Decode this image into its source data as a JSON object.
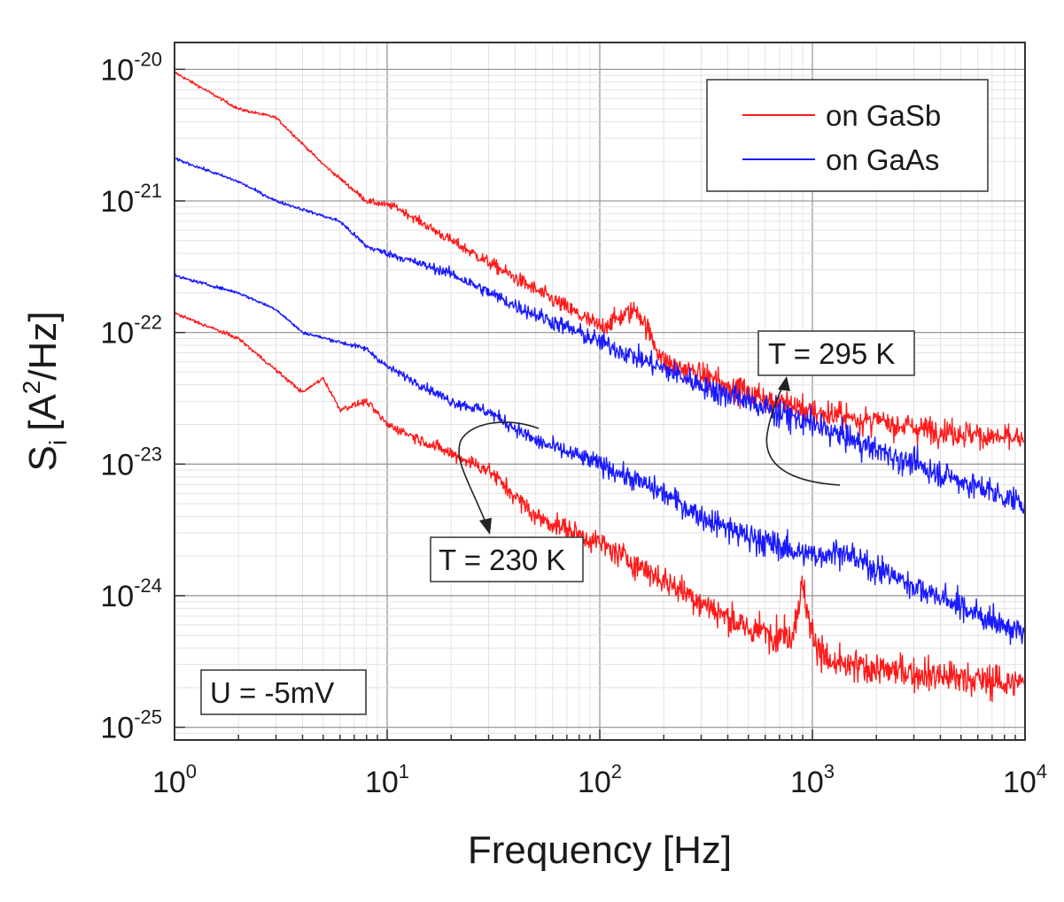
{
  "chart_data": {
    "type": "line",
    "xscale": "log",
    "yscale": "log",
    "xlim": [
      1,
      10000
    ],
    "ylim": [
      8e-26,
      1.6e-20
    ],
    "xlabel": "Frequency [Hz]",
    "ylabel": {
      "main": "S",
      "sub": "i",
      "unit_open": "[A",
      "unit_sup": "2",
      "unit_close": "/Hz]"
    },
    "x_ticks": [
      {
        "value": 1,
        "base": "10",
        "exp": "0"
      },
      {
        "value": 10,
        "base": "10",
        "exp": "1"
      },
      {
        "value": 100,
        "base": "10",
        "exp": "2"
      },
      {
        "value": 1000,
        "base": "10",
        "exp": "3"
      },
      {
        "value": 10000,
        "base": "10",
        "exp": "4"
      }
    ],
    "y_ticks": [
      {
        "value": 1e-20,
        "base": "10",
        "exp": "-20"
      },
      {
        "value": 1e-21,
        "base": "10",
        "exp": "-21"
      },
      {
        "value": 1e-22,
        "base": "10",
        "exp": "-22"
      },
      {
        "value": 1e-23,
        "base": "10",
        "exp": "-23"
      },
      {
        "value": 1e-24,
        "base": "10",
        "exp": "-24"
      },
      {
        "value": 1e-25,
        "base": "10",
        "exp": "-25"
      }
    ],
    "grid": true,
    "legend": {
      "placement": "top-right",
      "entries": [
        {
          "label": "on GaSb",
          "color": "#ff1a1a"
        },
        {
          "label": "on GaAs",
          "color": "#1a1aff"
        }
      ]
    },
    "series": [
      {
        "name": "on GaSb",
        "temperature": "T = 295 K",
        "color": "#ff1a1a",
        "noise": 0.04,
        "x": [
          1,
          2,
          3,
          5,
          8,
          11,
          20,
          40,
          100,
          150,
          200,
          500,
          1000,
          3000,
          10000
        ],
        "y": [
          9.5e-21,
          5e-21,
          4.3e-21,
          1.9e-21,
          1e-21,
          9e-22,
          5e-22,
          2.6e-22,
          1.1e-22,
          1.5e-22,
          6e-23,
          3.5e-23,
          2.5e-23,
          1.9e-23,
          1.5e-23
        ]
      },
      {
        "name": "on GaAs",
        "temperature": "T = 295 K",
        "color": "#1a1aff",
        "noise": 0.04,
        "x": [
          1,
          2,
          3,
          6,
          8,
          10,
          20,
          40,
          100,
          300,
          1000,
          3000,
          10000
        ],
        "y": [
          2.1e-21,
          1.4e-21,
          1e-21,
          7e-22,
          4.5e-22,
          4e-22,
          2.8e-22,
          1.6e-22,
          8.5e-23,
          4e-23,
          2e-23,
          1e-23,
          5e-24
        ]
      },
      {
        "name": "on GaAs",
        "temperature": "T = 230 K",
        "color": "#1a1aff",
        "noise": 0.04,
        "x": [
          1,
          2,
          3,
          4,
          8,
          10,
          20,
          30,
          50,
          100,
          200,
          300,
          500,
          1000,
          1300,
          3000,
          10000
        ],
        "y": [
          2.7e-22,
          2e-22,
          1.5e-22,
          1e-22,
          7.5e-23,
          5.5e-23,
          3e-23,
          2.5e-23,
          1.5e-23,
          1e-23,
          6e-24,
          4e-24,
          2.8e-24,
          2e-24,
          2.2e-24,
          1.2e-24,
          5e-25
        ]
      },
      {
        "name": "on GaSb",
        "temperature": "T = 230 K",
        "color": "#ff1a1a",
        "noise": 0.05,
        "x": [
          1,
          2,
          4,
          5,
          6,
          8,
          10,
          20,
          30,
          50,
          100,
          300,
          500,
          800,
          900,
          1000,
          1200,
          3000,
          10000
        ],
        "y": [
          1.4e-22,
          9e-23,
          3.5e-23,
          4.5e-23,
          2.6e-23,
          3e-23,
          2e-23,
          1.2e-23,
          9e-24,
          4e-24,
          2.5e-24,
          9e-25,
          5.5e-25,
          5e-25,
          1.2e-24,
          5e-25,
          3e-25,
          2.6e-25,
          2.1e-25
        ]
      }
    ],
    "annotations": [
      {
        "id": "t295",
        "text": "T = 295 K"
      },
      {
        "id": "t230",
        "text": "T = 230 K"
      },
      {
        "id": "voltage",
        "text": "U = -5mV"
      }
    ]
  }
}
